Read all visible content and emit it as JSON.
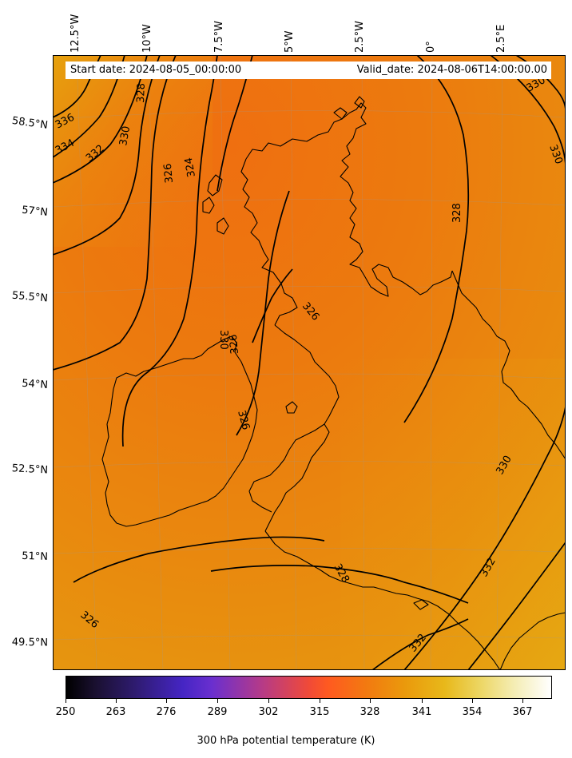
{
  "map": {
    "info": {
      "start_date": "Start date: 2024-08-05_00:00:00",
      "valid_date": "Valid_date: 2024-08-06T14:00:00.00"
    },
    "longitude_labels": [
      "12.5°W",
      "10°W",
      "7.5°W",
      "5°W",
      "2.5°W",
      "0°",
      "2.5°E"
    ],
    "latitude_labels": [
      "58.5°N",
      "57°N",
      "55.5°N",
      "54°N",
      "52.5°N",
      "51°N",
      "49.5°N"
    ],
    "contour_labels": [
      "336",
      "334",
      "332",
      "330",
      "328",
      "326",
      "324",
      "326",
      "328",
      "330",
      "330",
      "330",
      "332",
      "332",
      "326",
      "328",
      "326",
      "326",
      "330"
    ],
    "colorbar": {
      "ticks": [
        "250",
        "263",
        "276",
        "289",
        "302",
        "315",
        "328",
        "341",
        "354",
        "367"
      ],
      "label": "300 hPa potential temperature (K)"
    },
    "colors": {
      "field_warm": "#ee7410",
      "field_mid": "#e98a0e",
      "field_cool": "#e3a010",
      "contour": "#000000",
      "coastline": "#000000"
    }
  }
}
